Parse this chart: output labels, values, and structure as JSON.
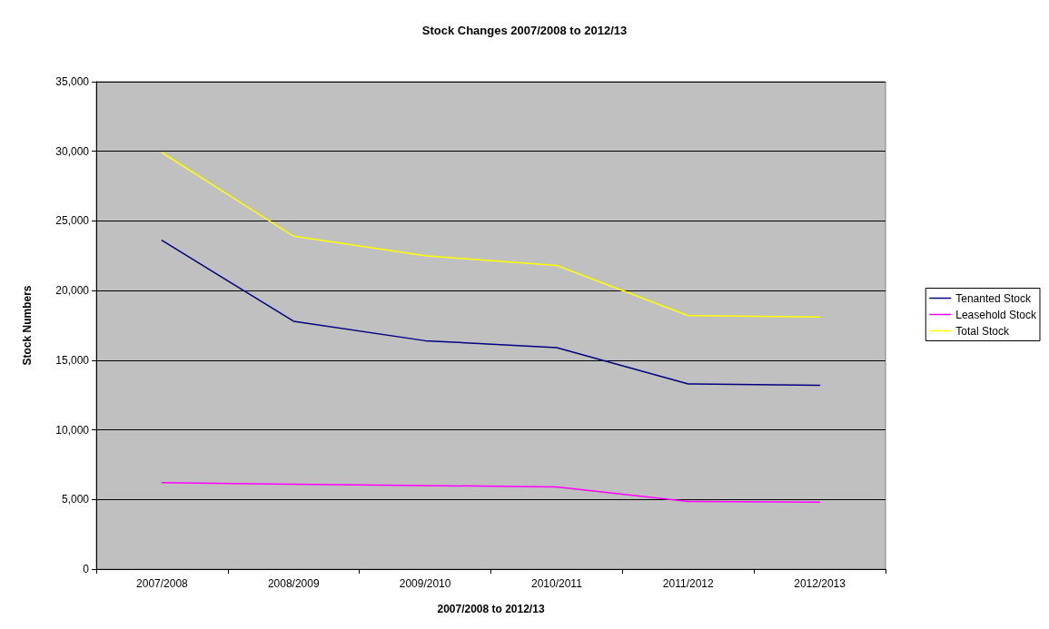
{
  "chart_data": {
    "type": "line",
    "title": "Stock Changes 2007/2008 to 2012/13",
    "xlabel": "2007/2008 to 2012/13",
    "ylabel": "Stock Numbers",
    "categories": [
      "2007/2008",
      "2008/2009",
      "2009/2010",
      "2010/2011",
      "2011/2012",
      "2012/2013"
    ],
    "series": [
      {
        "name": "Tenanted Stock",
        "color": "#000080",
        "values": [
          23600,
          17800,
          16400,
          15900,
          13300,
          13200
        ]
      },
      {
        "name": "Leasehold Stock",
        "color": "#ff00ff",
        "values": [
          6200,
          6100,
          6000,
          5900,
          4850,
          4800
        ]
      },
      {
        "name": "Total Stock",
        "color": "#ffff00",
        "values": [
          29900,
          23900,
          22500,
          21800,
          18200,
          18100
        ]
      }
    ],
    "ylim": [
      0,
      35000
    ],
    "yticks": [
      0,
      {
        "value": 5000,
        "label": "5,000"
      },
      {
        "value": 10000,
        "label": "10,000"
      },
      {
        "value": 15000,
        "label": "15,000"
      },
      {
        "value": 20000,
        "label": "20,000"
      },
      {
        "value": 25000,
        "label": "25,000"
      },
      {
        "value": 30000,
        "label": "30,000"
      },
      {
        "value": 35000,
        "label": "35,000"
      }
    ],
    "grid": "y",
    "legend": "right",
    "marker": "none",
    "line_style": "solid"
  }
}
